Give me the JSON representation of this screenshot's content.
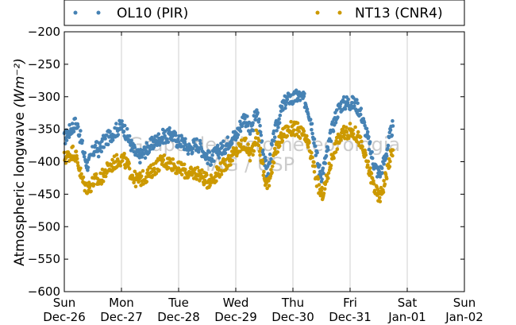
{
  "chart_data": {
    "type": "scatter",
    "ylabel": "Atmospheric longwave ",
    "ylabel_units": "(Wm⁻²)",
    "ylim": [
      -600,
      -200
    ],
    "yticks": [
      -200,
      -250,
      -300,
      -350,
      -400,
      -450,
      -500,
      -550,
      -600
    ],
    "ytick_labels": [
      "−200",
      "−250",
      "−300",
      "−350",
      "−400",
      "−450",
      "−500",
      "−550",
      "−600"
    ],
    "x_ticks": [
      {
        "day": 0,
        "line1": "Sun",
        "line2": "Dec-26"
      },
      {
        "day": 1,
        "line1": "Mon",
        "line2": "Dec-27"
      },
      {
        "day": 2,
        "line1": "Tue",
        "line2": "Dec-28"
      },
      {
        "day": 3,
        "line1": "Wed",
        "line2": "Dec-29"
      },
      {
        "day": 4,
        "line1": "Thu",
        "line2": "Dec-30"
      },
      {
        "day": 5,
        "line1": "Fri",
        "line2": "Dec-31"
      },
      {
        "day": 6,
        "line1": "Sat",
        "line2": "Jan-01"
      },
      {
        "day": 7,
        "line1": "Sun",
        "line2": "Jan-02"
      }
    ],
    "xlim": [
      0,
      7
    ],
    "grid": "vertical",
    "legend_position": "top",
    "watermark": [
      "Grupo de Micrometeorologia",
      "IAG / USP"
    ],
    "series": [
      {
        "name": "OL10 (PIR)",
        "color": "#4682b4",
        "points": [
          [
            0.0,
            -365
          ],
          [
            0.05,
            -358
          ],
          [
            0.1,
            -352
          ],
          [
            0.15,
            -345
          ],
          [
            0.2,
            -340
          ],
          [
            0.25,
            -350
          ],
          [
            0.3,
            -370
          ],
          [
            0.35,
            -390
          ],
          [
            0.4,
            -405
          ],
          [
            0.45,
            -398
          ],
          [
            0.5,
            -385
          ],
          [
            0.55,
            -378
          ],
          [
            0.6,
            -382
          ],
          [
            0.65,
            -375
          ],
          [
            0.7,
            -368
          ],
          [
            0.75,
            -365
          ],
          [
            0.8,
            -360
          ],
          [
            0.85,
            -356
          ],
          [
            0.9,
            -352
          ],
          [
            0.95,
            -348
          ],
          [
            1.0,
            -345
          ],
          [
            1.05,
            -350
          ],
          [
            1.1,
            -360
          ],
          [
            1.15,
            -370
          ],
          [
            1.2,
            -380
          ],
          [
            1.25,
            -388
          ],
          [
            1.3,
            -392
          ],
          [
            1.35,
            -390
          ],
          [
            1.4,
            -385
          ],
          [
            1.45,
            -380
          ],
          [
            1.5,
            -376
          ],
          [
            1.55,
            -372
          ],
          [
            1.6,
            -368
          ],
          [
            1.65,
            -365
          ],
          [
            1.7,
            -362
          ],
          [
            1.75,
            -360
          ],
          [
            1.8,
            -362
          ],
          [
            1.85,
            -358
          ],
          [
            1.9,
            -360
          ],
          [
            1.95,
            -365
          ],
          [
            2.0,
            -370
          ],
          [
            2.05,
            -368
          ],
          [
            2.1,
            -372
          ],
          [
            2.15,
            -378
          ],
          [
            2.2,
            -380
          ],
          [
            2.25,
            -376
          ],
          [
            2.3,
            -372
          ],
          [
            2.35,
            -374
          ],
          [
            2.4,
            -380
          ],
          [
            2.45,
            -386
          ],
          [
            2.5,
            -392
          ],
          [
            2.55,
            -396
          ],
          [
            2.6,
            -392
          ],
          [
            2.65,
            -388
          ],
          [
            2.7,
            -384
          ],
          [
            2.75,
            -380
          ],
          [
            2.8,
            -378
          ],
          [
            2.85,
            -372
          ],
          [
            2.9,
            -366
          ],
          [
            2.95,
            -360
          ],
          [
            3.0,
            -362
          ],
          [
            3.05,
            -350
          ],
          [
            3.1,
            -340
          ],
          [
            3.15,
            -330
          ],
          [
            3.2,
            -340
          ],
          [
            3.25,
            -355
          ],
          [
            3.3,
            -345
          ],
          [
            3.35,
            -325
          ],
          [
            3.4,
            -335
          ],
          [
            3.45,
            -365
          ],
          [
            3.5,
            -395
          ],
          [
            3.55,
            -420
          ],
          [
            3.6,
            -395
          ],
          [
            3.65,
            -370
          ],
          [
            3.7,
            -350
          ],
          [
            3.75,
            -335
          ],
          [
            3.8,
            -320
          ],
          [
            3.85,
            -310
          ],
          [
            3.9,
            -305
          ],
          [
            3.95,
            -302
          ],
          [
            4.0,
            -305
          ],
          [
            4.05,
            -300
          ],
          [
            4.1,
            -298
          ],
          [
            4.15,
            -302
          ],
          [
            4.2,
            -305
          ],
          [
            4.25,
            -315
          ],
          [
            4.3,
            -330
          ],
          [
            4.35,
            -352
          ],
          [
            4.4,
            -380
          ],
          [
            4.45,
            -410
          ],
          [
            4.5,
            -420
          ],
          [
            4.55,
            -405
          ],
          [
            4.6,
            -385
          ],
          [
            4.65,
            -365
          ],
          [
            4.7,
            -345
          ],
          [
            4.75,
            -330
          ],
          [
            4.8,
            -318
          ],
          [
            4.85,
            -312
          ],
          [
            4.9,
            -310
          ],
          [
            4.95,
            -308
          ],
          [
            5.0,
            -310
          ],
          [
            5.05,
            -310
          ],
          [
            5.1,
            -312
          ],
          [
            5.15,
            -318
          ],
          [
            5.2,
            -328
          ],
          [
            5.25,
            -345
          ],
          [
            5.3,
            -360
          ],
          [
            5.35,
            -380
          ],
          [
            5.4,
            -398
          ],
          [
            5.45,
            -410
          ],
          [
            5.5,
            -418
          ],
          [
            5.55,
            -412
          ],
          [
            5.6,
            -398
          ],
          [
            5.65,
            -380
          ],
          [
            5.7,
            -360
          ],
          [
            5.75,
            -345
          ]
        ]
      },
      {
        "name": "NT13 (CNR4)",
        "color": "#cc9900",
        "points": [
          [
            0.0,
            -395
          ],
          [
            0.05,
            -392
          ],
          [
            0.1,
            -388
          ],
          [
            0.15,
            -385
          ],
          [
            0.2,
            -390
          ],
          [
            0.25,
            -405
          ],
          [
            0.3,
            -425
          ],
          [
            0.35,
            -435
          ],
          [
            0.4,
            -440
          ],
          [
            0.45,
            -438
          ],
          [
            0.5,
            -432
          ],
          [
            0.55,
            -428
          ],
          [
            0.6,
            -430
          ],
          [
            0.65,
            -425
          ],
          [
            0.7,
            -418
          ],
          [
            0.75,
            -412
          ],
          [
            0.8,
            -408
          ],
          [
            0.85,
            -404
          ],
          [
            0.9,
            -400
          ],
          [
            0.95,
            -398
          ],
          [
            1.0,
            -395
          ],
          [
            1.05,
            -398
          ],
          [
            1.1,
            -405
          ],
          [
            1.15,
            -415
          ],
          [
            1.2,
            -422
          ],
          [
            1.25,
            -428
          ],
          [
            1.3,
            -428
          ],
          [
            1.35,
            -426
          ],
          [
            1.4,
            -424
          ],
          [
            1.45,
            -420
          ],
          [
            1.5,
            -418
          ],
          [
            1.55,
            -412
          ],
          [
            1.6,
            -408
          ],
          [
            1.65,
            -404
          ],
          [
            1.7,
            -400
          ],
          [
            1.75,
            -398
          ],
          [
            1.8,
            -402
          ],
          [
            1.85,
            -400
          ],
          [
            1.9,
            -404
          ],
          [
            1.95,
            -408
          ],
          [
            2.0,
            -412
          ],
          [
            2.05,
            -410
          ],
          [
            2.1,
            -414
          ],
          [
            2.15,
            -418
          ],
          [
            2.2,
            -420
          ],
          [
            2.25,
            -418
          ],
          [
            2.3,
            -416
          ],
          [
            2.35,
            -418
          ],
          [
            2.4,
            -422
          ],
          [
            2.45,
            -426
          ],
          [
            2.5,
            -430
          ],
          [
            2.55,
            -428
          ],
          [
            2.6,
            -426
          ],
          [
            2.65,
            -420
          ],
          [
            2.7,
            -414
          ],
          [
            2.75,
            -410
          ],
          [
            2.8,
            -405
          ],
          [
            2.85,
            -400
          ],
          [
            2.9,
            -396
          ],
          [
            2.95,
            -390
          ],
          [
            3.0,
            -386
          ],
          [
            3.05,
            -380
          ],
          [
            3.1,
            -375
          ],
          [
            3.15,
            -372
          ],
          [
            3.2,
            -378
          ],
          [
            3.25,
            -390
          ],
          [
            3.3,
            -380
          ],
          [
            3.35,
            -360
          ],
          [
            3.4,
            -370
          ],
          [
            3.45,
            -395
          ],
          [
            3.5,
            -425
          ],
          [
            3.55,
            -438
          ],
          [
            3.6,
            -420
          ],
          [
            3.65,
            -400
          ],
          [
            3.7,
            -385
          ],
          [
            3.75,
            -372
          ],
          [
            3.8,
            -362
          ],
          [
            3.85,
            -356
          ],
          [
            3.9,
            -352
          ],
          [
            3.95,
            -350
          ],
          [
            4.0,
            -348
          ],
          [
            4.05,
            -350
          ],
          [
            4.1,
            -352
          ],
          [
            4.15,
            -356
          ],
          [
            4.2,
            -362
          ],
          [
            4.25,
            -372
          ],
          [
            4.3,
            -385
          ],
          [
            4.35,
            -402
          ],
          [
            4.4,
            -422
          ],
          [
            4.45,
            -440
          ],
          [
            4.5,
            -452
          ],
          [
            4.55,
            -442
          ],
          [
            4.6,
            -425
          ],
          [
            4.65,
            -405
          ],
          [
            4.7,
            -388
          ],
          [
            4.75,
            -375
          ],
          [
            4.8,
            -366
          ],
          [
            4.85,
            -360
          ],
          [
            4.9,
            -356
          ],
          [
            4.95,
            -354
          ],
          [
            5.0,
            -352
          ],
          [
            5.05,
            -354
          ],
          [
            5.1,
            -358
          ],
          [
            5.15,
            -364
          ],
          [
            5.2,
            -375
          ],
          [
            5.25,
            -390
          ],
          [
            5.3,
            -404
          ],
          [
            5.35,
            -418
          ],
          [
            5.4,
            -432
          ],
          [
            5.45,
            -445
          ],
          [
            5.5,
            -455
          ],
          [
            5.55,
            -448
          ],
          [
            5.6,
            -432
          ],
          [
            5.65,
            -412
          ],
          [
            5.7,
            -395
          ],
          [
            5.75,
            -382
          ]
        ]
      }
    ]
  }
}
